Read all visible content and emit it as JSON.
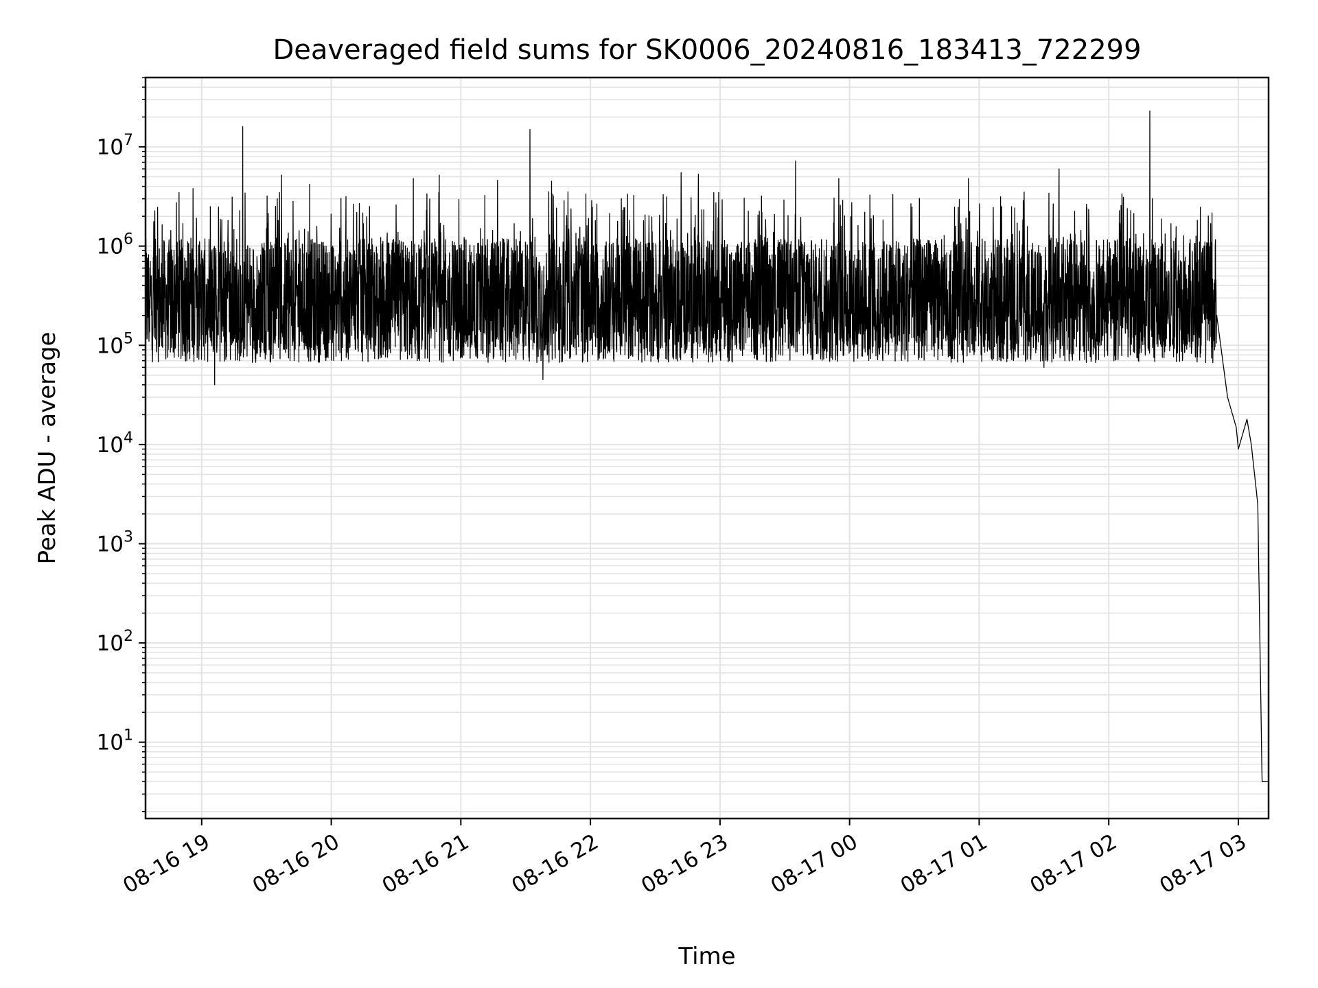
{
  "chart_data": {
    "type": "line",
    "title": "Deaveraged field sums for SK0006_20240816_183413_722299",
    "xlabel": "Time",
    "ylabel": "Peak ADU - average",
    "x_axis": {
      "scale": "time",
      "range": [
        "2024-08-16 18:34",
        "2024-08-17 03:14"
      ],
      "ticks": [
        "08-16 19",
        "08-16 20",
        "08-16 21",
        "08-16 22",
        "08-16 23",
        "08-17 00",
        "08-17 01",
        "08-17 02",
        "08-17 03"
      ],
      "tick_label_rotation_deg": 30
    },
    "y_axis": {
      "scale": "log",
      "range": [
        1.7,
        50000000
      ],
      "ticks": [
        {
          "base": "10",
          "exp": "1",
          "value": 10
        },
        {
          "base": "10",
          "exp": "2",
          "value": 100
        },
        {
          "base": "10",
          "exp": "3",
          "value": 1000
        },
        {
          "base": "10",
          "exp": "4",
          "value": 10000
        },
        {
          "base": "10",
          "exp": "5",
          "value": 100000
        },
        {
          "base": "10",
          "exp": "6",
          "value": 1000000
        },
        {
          "base": "10",
          "exp": "7",
          "value": 10000000
        }
      ]
    },
    "grid": true,
    "legend": "none",
    "series": [
      {
        "color": "#000000",
        "points": [
          [
            "2024-08-16 18:34",
            700000
          ],
          [
            "2024-08-16 18:36",
            600000
          ],
          [
            "2024-08-16 18:40",
            580000
          ],
          [
            "2024-08-16 18:45",
            520000
          ],
          [
            "2024-08-16 18:48",
            650000
          ],
          [
            "2024-08-16 18:50",
            900000
          ],
          [
            "2024-08-16 18:53",
            600000
          ],
          [
            "2024-08-16 18:55",
            1200000
          ],
          [
            "2024-08-16 18:56",
            3800000
          ],
          [
            "2024-08-16 18:58",
            500000
          ],
          [
            "2024-08-16 19:00",
            900000
          ],
          [
            "2024-08-16 19:04",
            2500000
          ],
          [
            "2024-08-16 19:06",
            40000
          ],
          [
            "2024-08-16 19:08",
            700000
          ],
          [
            "2024-08-16 19:15",
            500000
          ],
          [
            "2024-08-16 19:19",
            16000000
          ],
          [
            "2024-08-16 19:22",
            200000
          ],
          [
            "2024-08-16 19:30",
            1500000
          ],
          [
            "2024-08-16 19:37",
            5200000
          ],
          [
            "2024-08-16 19:42",
            100000
          ],
          [
            "2024-08-16 19:50",
            4200000
          ],
          [
            "2024-08-16 19:55",
            80000
          ],
          [
            "2024-08-16 20:00",
            700000
          ],
          [
            "2024-08-16 20:10",
            200000
          ],
          [
            "2024-08-16 20:20",
            800000
          ],
          [
            "2024-08-16 20:30",
            2600000
          ],
          [
            "2024-08-16 20:38",
            4800000
          ],
          [
            "2024-08-16 20:45",
            600000
          ],
          [
            "2024-08-16 20:50",
            5200000
          ],
          [
            "2024-08-16 20:58",
            900000
          ],
          [
            "2024-08-16 21:10",
            700000
          ],
          [
            "2024-08-16 21:17",
            4600000
          ],
          [
            "2024-08-16 21:25",
            300000
          ],
          [
            "2024-08-16 21:32",
            15000000
          ],
          [
            "2024-08-16 21:38",
            45000
          ],
          [
            "2024-08-16 21:42",
            4500000
          ],
          [
            "2024-08-16 21:55",
            600000
          ],
          [
            "2024-08-16 22:05",
            500000
          ],
          [
            "2024-08-16 22:15",
            2300000
          ],
          [
            "2024-08-16 22:30",
            400000
          ],
          [
            "2024-08-16 22:42",
            5500000
          ],
          [
            "2024-08-16 22:50",
            5300000
          ],
          [
            "2024-08-16 23:00",
            300000
          ],
          [
            "2024-08-16 23:15",
            600000
          ],
          [
            "2024-08-16 23:35",
            7200000
          ],
          [
            "2024-08-16 23:45",
            100000
          ],
          [
            "2024-08-16 23:55",
            4800000
          ],
          [
            "2024-08-17 00:05",
            150000
          ],
          [
            "2024-08-17 00:20",
            3300000
          ],
          [
            "2024-08-17 00:35",
            100000
          ],
          [
            "2024-08-17 00:55",
            4800000
          ],
          [
            "2024-08-17 01:05",
            90000
          ],
          [
            "2024-08-17 01:15",
            2500000
          ],
          [
            "2024-08-17 01:30",
            60000
          ],
          [
            "2024-08-17 01:37",
            6000000
          ],
          [
            "2024-08-17 01:45",
            200000
          ],
          [
            "2024-08-17 02:00",
            300000
          ],
          [
            "2024-08-17 02:10",
            80000
          ],
          [
            "2024-08-17 02:19",
            23000000
          ],
          [
            "2024-08-17 02:25",
            100000
          ],
          [
            "2024-08-17 02:35",
            700000
          ],
          [
            "2024-08-17 02:42",
            1100000
          ],
          [
            "2024-08-17 02:47",
            800000
          ],
          [
            "2024-08-17 02:50",
            200000
          ],
          [
            "2024-08-17 02:55",
            30000
          ],
          [
            "2024-08-17 02:59",
            15000
          ],
          [
            "2024-08-17 03:00",
            9000
          ],
          [
            "2024-08-17 03:04",
            18000
          ],
          [
            "2024-08-17 03:06",
            10000
          ],
          [
            "2024-08-17 03:09",
            2500
          ],
          [
            "2024-08-17 03:11",
            4
          ],
          [
            "2024-08-17 03:14",
            4
          ]
        ]
      }
    ]
  }
}
